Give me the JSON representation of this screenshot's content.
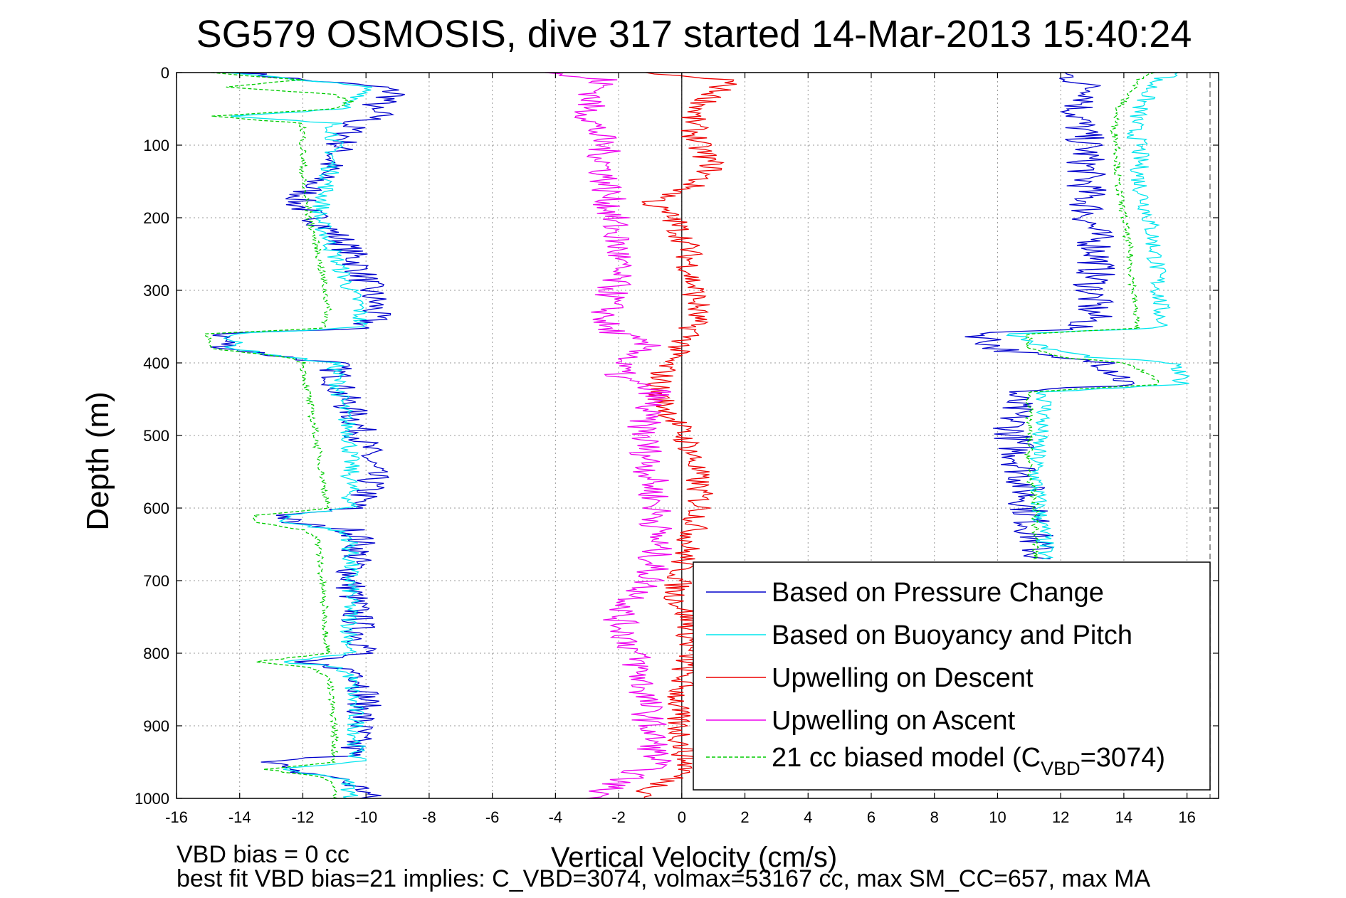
{
  "chart_data": {
    "type": "line",
    "title": "SG579 OSMOSIS, dive 317 started 14-Mar-2013 15:40:24",
    "xlabel": "Vertical Velocity (cm/s)",
    "ylabel": "Depth (m)",
    "xlim": [
      -16,
      17
    ],
    "ylim": [
      0,
      1000
    ],
    "y_reversed": true,
    "grid": true,
    "x_ticks": [
      -16,
      -14,
      -12,
      -10,
      -8,
      -6,
      -4,
      -2,
      0,
      2,
      4,
      6,
      8,
      10,
      12,
      14,
      16
    ],
    "y_ticks": [
      0,
      100,
      200,
      300,
      400,
      500,
      600,
      700,
      800,
      900,
      1000
    ],
    "legend_position": "bottom-right",
    "legend": [
      {
        "label": "Based on Pressure Change",
        "color": "#0000cc"
      },
      {
        "label": "Based on Buoyancy and Pitch",
        "color": "#00e5ee"
      },
      {
        "label": "Upwelling on Descent",
        "color": "#ee0000"
      },
      {
        "label": "Upwelling on Ascent",
        "color": "#ee00ee"
      },
      {
        "label": "21 cc biased model (C",
        "sub": "VBD",
        "suffix": "=3074)",
        "color": "#00cc00"
      }
    ],
    "series": [
      {
        "name": "Based on Pressure Change",
        "key": "descent",
        "color": "#0000cc",
        "jitter": 0.55,
        "depth": [
          0,
          10,
          20,
          30,
          40,
          50,
          60,
          70,
          80,
          100,
          130,
          160,
          180,
          200,
          230,
          260,
          290,
          320,
          340,
          352,
          360,
          380,
          392,
          400,
          440,
          480,
          520,
          560,
          580,
          600,
          610,
          620,
          630,
          640,
          650,
          700,
          750,
          800,
          812,
          818,
          830,
          860,
          900,
          940,
          950,
          960,
          970,
          980,
          990,
          1000
        ],
        "velocity": [
          -14,
          -12,
          -9.5,
          -9,
          -9.5,
          -10,
          -9.5,
          -10.5,
          -10.5,
          -10.8,
          -11.2,
          -11.8,
          -12.2,
          -11.6,
          -10.8,
          -10.3,
          -10,
          -9.7,
          -9.8,
          -10.2,
          -14.5,
          -14.4,
          -12.5,
          -11,
          -10.8,
          -10.3,
          -10,
          -9.8,
          -10,
          -10.5,
          -12.5,
          -12.5,
          -10.5,
          -10.2,
          -10.2,
          -10.5,
          -10.3,
          -10,
          -12.5,
          -11,
          -10.1,
          -10,
          -10.2,
          -10.5,
          -12.8,
          -12.8,
          -11,
          -10.5,
          -10,
          -10
        ]
      },
      {
        "name": "Based on Pressure Change",
        "key": "ascent",
        "color": "#0000cc",
        "jitter": 0.65,
        "depth": [
          0,
          10,
          30,
          50,
          70,
          100,
          150,
          200,
          250,
          300,
          340,
          352,
          360,
          380,
          392,
          400,
          420,
          430,
          440,
          470,
          500,
          550,
          600,
          650,
          670
        ],
        "velocity": [
          12,
          12.5,
          13.2,
          12.5,
          12.6,
          12.8,
          12.8,
          12.9,
          13.2,
          13.0,
          13.0,
          12.5,
          9.5,
          10,
          11.5,
          13.5,
          14.0,
          14.0,
          10.5,
          10.5,
          10.5,
          10.8,
          11.0,
          11.2,
          11.3
        ]
      },
      {
        "name": "Based on Buoyancy and Pitch",
        "key": "descent",
        "color": "#00e5ee",
        "jitter": 0.3,
        "depth": [
          0,
          10,
          20,
          30,
          40,
          50,
          60,
          70,
          80,
          100,
          150,
          200,
          250,
          300,
          320,
          350,
          352,
          360,
          380,
          392,
          400,
          450,
          500,
          550,
          580,
          600,
          610,
          620,
          630,
          640,
          650,
          700,
          800,
          812,
          818,
          830,
          900,
          950,
          960,
          970,
          980,
          1000
        ],
        "velocity": [
          -14.5,
          -12,
          -10,
          -10,
          -10.5,
          -10.5,
          -14.5,
          -11,
          -11,
          -11,
          -11.2,
          -11.5,
          -11,
          -10.5,
          -10.2,
          -10.2,
          -10.6,
          -14.2,
          -14.2,
          -12.5,
          -11,
          -10.8,
          -10.5,
          -10.5,
          -10.5,
          -10.5,
          -12.5,
          -12.5,
          -11,
          -10.5,
          -10.5,
          -10.5,
          -10.5,
          -12.8,
          -11,
          -10.5,
          -10.3,
          -10.3,
          -12.8,
          -11,
          -10.5,
          -10.5
        ]
      },
      {
        "name": "Based on Buoyancy and Pitch",
        "key": "ascent",
        "color": "#00e5ee",
        "jitter": 0.3,
        "depth": [
          0,
          10,
          50,
          80,
          100,
          150,
          200,
          250,
          300,
          340,
          352,
          360,
          380,
          392,
          400,
          420,
          430,
          440,
          470,
          500,
          550,
          600,
          650,
          670
        ],
        "velocity": [
          16,
          15,
          14.5,
          14.3,
          14.5,
          14.5,
          14.8,
          15,
          15.1,
          15.2,
          15.2,
          10.5,
          11.5,
          13,
          15.5,
          15.8,
          15.8,
          11.5,
          11.5,
          11.3,
          11.2,
          11.3,
          11.5,
          11.5
        ]
      },
      {
        "name": "Upwelling on Descent",
        "key": "descent",
        "color": "#ee0000",
        "jitter": 0.45,
        "depth": [
          0,
          10,
          30,
          60,
          100,
          130,
          160,
          180,
          200,
          240,
          280,
          320,
          360,
          400,
          440,
          480,
          520,
          560,
          600,
          640,
          680,
          720,
          760,
          800,
          840,
          880,
          920,
          960,
          990,
          1000
        ],
        "velocity": [
          -1.5,
          1.5,
          1.0,
          0.3,
          0.5,
          1.0,
          0.2,
          -1.0,
          -0.3,
          0.2,
          0.3,
          0.5,
          0.3,
          -0.5,
          -0.8,
          -0.2,
          0.3,
          0.5,
          0.6,
          0.3,
          0.0,
          -0.2,
          0.3,
          0.2,
          0.0,
          -0.2,
          0.0,
          0.2,
          -1.0,
          -1.0
        ]
      },
      {
        "name": "Upwelling on Ascent",
        "key": "ascent",
        "color": "#ee00ee",
        "jitter": 0.55,
        "depth": [
          0,
          10,
          50,
          100,
          150,
          200,
          250,
          300,
          350,
          380,
          400,
          420,
          440,
          470,
          500,
          550,
          600,
          650,
          700,
          750,
          800,
          850,
          900,
          950,
          990,
          1000
        ],
        "velocity": [
          -4.5,
          -2.5,
          -3.0,
          -2.5,
          -2.4,
          -2.2,
          -2.0,
          -2.2,
          -2.5,
          -1.0,
          -2.0,
          -2.0,
          -0.8,
          -1.2,
          -1.2,
          -1.0,
          -0.8,
          -0.8,
          -1.0,
          -2.0,
          -1.5,
          -1.2,
          -1.0,
          -0.8,
          -2.5,
          -2.5
        ]
      },
      {
        "name": "21 cc biased model",
        "key": "descent",
        "color": "#00cc00",
        "jitter": 0.12,
        "dashed": true,
        "depth": [
          0,
          10,
          20,
          30,
          40,
          50,
          60,
          70,
          80,
          100,
          150,
          200,
          250,
          300,
          320,
          350,
          352,
          360,
          380,
          392,
          400,
          450,
          500,
          550,
          600,
          610,
          620,
          630,
          640,
          650,
          700,
          800,
          812,
          818,
          830,
          900,
          950,
          960,
          970,
          980,
          1000
        ],
        "velocity": [
          -15,
          -12,
          -14.5,
          -11,
          -10.5,
          -11,
          -15,
          -12,
          -12,
          -12,
          -12,
          -11.8,
          -11.5,
          -11.3,
          -11.2,
          -11.3,
          -11.3,
          -15,
          -15,
          -12.5,
          -12,
          -11.8,
          -11.6,
          -11.4,
          -11.2,
          -13.5,
          -13.5,
          -12,
          -11.5,
          -11.5,
          -11.4,
          -11.2,
          -13.5,
          -12,
          -11.2,
          -11.0,
          -11.0,
          -13.2,
          -11.5,
          -11.0,
          -11.0
        ]
      },
      {
        "name": "21 cc biased model",
        "key": "ascent",
        "color": "#00cc00",
        "jitter": 0.12,
        "dashed": true,
        "depth": [
          0,
          10,
          50,
          80,
          100,
          150,
          200,
          250,
          300,
          340,
          352,
          360,
          380,
          392,
          400,
          420,
          430,
          440,
          470,
          500,
          550,
          600,
          650,
          670
        ],
        "velocity": [
          15,
          14.5,
          13.8,
          13.7,
          13.8,
          13.8,
          14.0,
          14.2,
          14.3,
          14.4,
          14.4,
          11,
          11,
          12,
          14,
          15,
          15,
          11,
          11,
          11,
          11,
          11.2,
          11.2,
          11.2
        ]
      }
    ]
  },
  "footer": {
    "line1": "VBD bias = 0 cc",
    "line2": "best fit VBD bias=21 implies: C_VBD=3074, volmax=53167 cc, max SM_CC=657, max MA"
  }
}
